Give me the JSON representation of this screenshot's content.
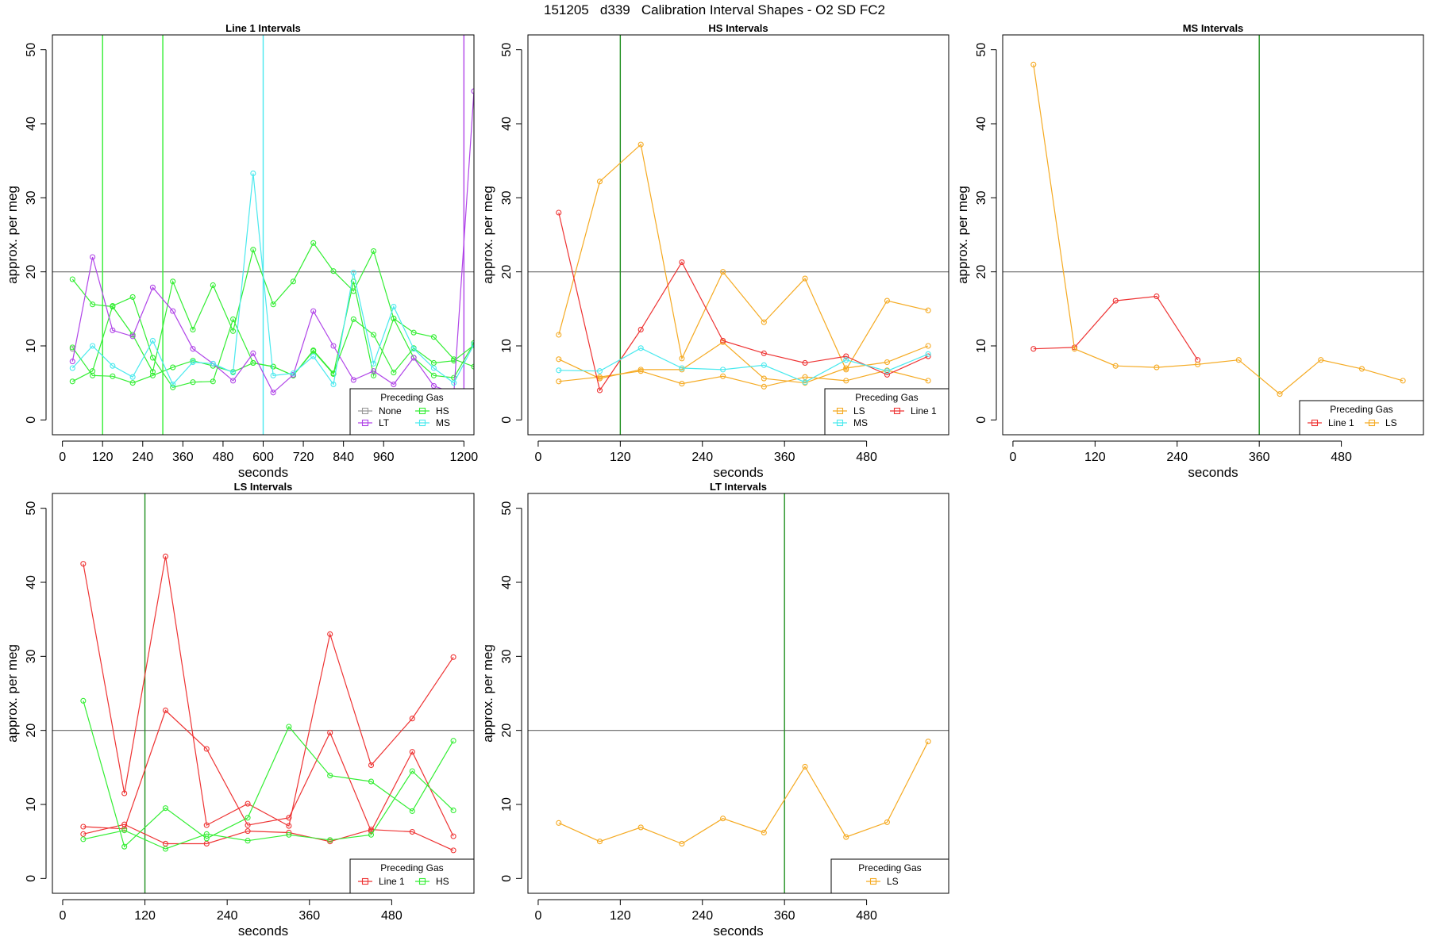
{
  "page_title": "151205   d339   Calibration Interval Shapes - O2 SD FC2",
  "colors": {
    "None": "#999999",
    "HS": "#33ee33",
    "LT": "#b044e8",
    "MS": "#4ae9ee",
    "LS": "#f5aa22",
    "Line 1": "#ee3333",
    "reference_line": "#666666",
    "vertical_marker": "#1f8f1f"
  },
  "chart_data": [
    {
      "type": "line",
      "title": "Line 1 Intervals",
      "xlabel": "seconds",
      "ylabel": "approx. per meg",
      "xlim": [
        -30,
        1230
      ],
      "ylim": [
        -2,
        52
      ],
      "x_ticks": [
        0,
        120,
        240,
        360,
        480,
        600,
        720,
        840,
        960,
        1200
      ],
      "y_ticks": [
        0,
        10,
        20,
        30,
        40,
        50
      ],
      "hline": 20,
      "vlines": [
        {
          "x": 120,
          "color": "HS"
        },
        {
          "x": 300,
          "color": "HS"
        },
        {
          "x": 600,
          "color": "MS"
        },
        {
          "x": 1200,
          "color": "LT"
        }
      ],
      "legend": {
        "title": "Preceding Gas",
        "position": "bottom-right",
        "columns": 2,
        "entries": [
          "None",
          "HS",
          "LT",
          "MS"
        ]
      },
      "series": [
        {
          "name": "None",
          "x": [
            30
          ],
          "y": [
            9.6
          ]
        },
        {
          "name": "HS",
          "x": [
            30,
            90,
            150,
            210,
            270,
            330,
            390,
            450,
            510,
            570,
            630,
            690,
            750,
            810,
            870,
            930,
            990,
            1050,
            1110,
            1170,
            1230
          ],
          "y": [
            19.0,
            15.6,
            15.3,
            11.5,
            6.5,
            18.7,
            12.2,
            18.2,
            12.0,
            23.0,
            15.6,
            18.7,
            23.9,
            20.1,
            17.4,
            22.8,
            13.7,
            11.8,
            11.2,
            8.2,
            7.2
          ]
        },
        {
          "name": "HS",
          "x": [
            30,
            90,
            150,
            210,
            270,
            330,
            390,
            450,
            510,
            570,
            630,
            690,
            750,
            810,
            870,
            930,
            990,
            1050,
            1110,
            1170,
            1230
          ],
          "y": [
            5.2,
            6.6,
            15.4,
            16.6,
            8.4,
            4.4,
            5.1,
            5.2,
            13.6,
            7.7,
            7.2,
            6.0,
            9.4,
            6.3,
            13.6,
            11.5,
            6.4,
            9.7,
            7.7,
            8.0,
            10.1
          ]
        },
        {
          "name": "HS",
          "x": [
            30,
            90,
            150,
            210,
            270,
            330,
            390,
            450,
            510,
            570,
            630,
            690,
            750,
            810,
            870,
            930,
            990,
            1050,
            1110,
            1170,
            1230
          ],
          "y": [
            9.8,
            6.0,
            5.9,
            5.0,
            6.0,
            7.1,
            8.0,
            7.3,
            6.5,
            7.7,
            7.2,
            6.0,
            9.3,
            6.2,
            18.7,
            6.0,
            13.7,
            8.4,
            6.0,
            5.7,
            10.4
          ]
        },
        {
          "name": "LT",
          "x": [
            30,
            90,
            150,
            210,
            270,
            330,
            390,
            450,
            510,
            570,
            630,
            690,
            750,
            810,
            870,
            930,
            990,
            1050,
            1110,
            1170,
            1230
          ],
          "y": [
            7.9,
            22.0,
            12.1,
            11.3,
            17.9,
            14.7,
            9.6,
            7.6,
            5.3,
            9.0,
            3.7,
            6.1,
            14.7,
            10.0,
            5.4,
            6.6,
            4.8,
            8.4,
            4.6,
            3.6,
            44.4
          ]
        },
        {
          "name": "MS",
          "x": [
            30,
            90,
            150,
            210,
            270,
            330,
            390,
            450,
            510,
            570,
            630,
            690,
            750,
            810,
            870,
            930,
            990,
            1050,
            1110,
            1170,
            1230
          ],
          "y": [
            7.0,
            10.0,
            7.3,
            5.8,
            10.7,
            4.8,
            7.8,
            7.6,
            6.4,
            33.3,
            6.0,
            6.3,
            8.6,
            4.8,
            19.9,
            7.6,
            15.3,
            9.6,
            7.0,
            5.0,
            10.2
          ]
        }
      ]
    },
    {
      "type": "line",
      "title": "HS Intervals",
      "xlabel": "seconds",
      "ylabel": "approx. per meg",
      "xlim": [
        -15,
        600
      ],
      "ylim": [
        -2,
        52
      ],
      "x_ticks": [
        0,
        120,
        240,
        360,
        480
      ],
      "y_ticks": [
        0,
        10,
        20,
        30,
        40,
        50
      ],
      "hline": 20,
      "vlines": [
        {
          "x": 120,
          "color": "vertical_marker"
        }
      ],
      "legend": {
        "title": "Preceding Gas",
        "position": "bottom-right",
        "columns": 2,
        "entries": [
          "LS",
          "Line 1",
          "MS"
        ]
      },
      "series": [
        {
          "name": "LS",
          "x": [
            30,
            90,
            150,
            210,
            270,
            330,
            390,
            450,
            510,
            570
          ],
          "y": [
            11.5,
            32.2,
            37.2,
            8.3,
            20.0,
            13.2,
            19.1,
            6.8,
            16.1,
            14.8
          ]
        },
        {
          "name": "LS",
          "x": [
            30,
            90,
            150,
            210,
            270,
            330,
            390,
            450,
            510,
            570
          ],
          "y": [
            8.2,
            5.6,
            6.8,
            6.8,
            10.5,
            5.6,
            5.0,
            7.0,
            7.8,
            10.0
          ]
        },
        {
          "name": "LS",
          "x": [
            30,
            90,
            150,
            210,
            270,
            330,
            390,
            450,
            510,
            570
          ],
          "y": [
            5.2,
            5.8,
            6.6,
            4.9,
            5.9,
            4.5,
            5.8,
            5.3,
            6.7,
            5.3
          ]
        },
        {
          "name": "Line 1",
          "x": [
            30,
            90,
            150,
            210,
            270,
            330,
            390,
            450,
            510,
            570
          ],
          "y": [
            28.0,
            4.0,
            12.2,
            21.3,
            10.7,
            9.0,
            7.7,
            8.6,
            6.1,
            8.6
          ]
        },
        {
          "name": "MS",
          "x": [
            30,
            90,
            150,
            210,
            270,
            330,
            390,
            450,
            510,
            570
          ],
          "y": [
            6.7,
            6.6,
            9.7,
            7.0,
            6.8,
            7.4,
            5.1,
            8.1,
            6.6,
            8.9
          ]
        }
      ]
    },
    {
      "type": "line",
      "title": "MS Intervals",
      "xlabel": "seconds",
      "ylabel": "approx. per meg",
      "xlim": [
        -15,
        600
      ],
      "ylim": [
        -2,
        52
      ],
      "x_ticks": [
        0,
        120,
        240,
        360,
        480
      ],
      "y_ticks": [
        0,
        10,
        20,
        30,
        40,
        50
      ],
      "hline": 20,
      "vlines": [
        {
          "x": 360,
          "color": "vertical_marker"
        }
      ],
      "legend": {
        "title": "Preceding Gas",
        "position": "bottom-right",
        "columns": 2,
        "entries": [
          "Line 1",
          "LS"
        ]
      },
      "series": [
        {
          "name": "Line 1",
          "x": [
            30,
            90,
            150,
            210,
            270
          ],
          "y": [
            9.6,
            9.8,
            16.1,
            16.7,
            8.1
          ]
        },
        {
          "name": "LS",
          "x": [
            30,
            90,
            150,
            210,
            270,
            330,
            390,
            450,
            510,
            570
          ],
          "y": [
            48.0,
            9.6,
            7.3,
            7.1,
            7.5,
            8.1,
            3.5,
            8.1,
            6.9,
            5.3
          ]
        }
      ]
    },
    {
      "type": "line",
      "title": "LS Intervals",
      "xlabel": "seconds",
      "ylabel": "approx. per meg",
      "xlim": [
        -15,
        600
      ],
      "ylim": [
        -2,
        52
      ],
      "x_ticks": [
        0,
        120,
        240,
        360,
        480
      ],
      "y_ticks": [
        0,
        10,
        20,
        30,
        40,
        50
      ],
      "hline": 20,
      "vlines": [
        {
          "x": 120,
          "color": "vertical_marker"
        }
      ],
      "legend": {
        "title": "Preceding Gas",
        "position": "bottom-right",
        "columns": 2,
        "entries": [
          "Line 1",
          "HS"
        ]
      },
      "series": [
        {
          "name": "Line 1",
          "x": [
            30,
            90,
            150,
            210,
            270,
            330,
            390,
            450,
            510,
            570
          ],
          "y": [
            42.5,
            11.5,
            43.5,
            7.2,
            10.1,
            7.1,
            33.0,
            15.3,
            21.6,
            29.9
          ]
        },
        {
          "name": "Line 1",
          "x": [
            30,
            90,
            150,
            210,
            270,
            330,
            390,
            450,
            510,
            570
          ],
          "y": [
            7.0,
            6.7,
            22.7,
            17.5,
            7.2,
            8.2,
            19.7,
            6.4,
            17.1,
            5.7
          ]
        },
        {
          "name": "Line 1",
          "x": [
            30,
            90,
            150,
            210,
            270,
            330,
            390,
            450,
            510,
            570
          ],
          "y": [
            6.0,
            7.3,
            4.7,
            4.7,
            6.4,
            6.2,
            5.0,
            6.6,
            6.3,
            3.8
          ]
        },
        {
          "name": "HS",
          "x": [
            30,
            90,
            150,
            210,
            270,
            330,
            390,
            450,
            510,
            570
          ],
          "y": [
            24.0,
            4.3,
            9.5,
            5.4,
            8.2,
            20.5,
            13.9,
            13.1,
            9.1,
            18.6
          ]
        },
        {
          "name": "HS",
          "x": [
            30,
            90,
            150,
            210,
            270,
            330,
            390,
            450,
            510,
            570
          ],
          "y": [
            5.3,
            6.5,
            4.0,
            6.0,
            5.1,
            5.9,
            5.2,
            5.9,
            14.5,
            9.2
          ]
        }
      ]
    },
    {
      "type": "line",
      "title": "LT Intervals",
      "xlabel": "seconds",
      "ylabel": "approx. per meg",
      "xlim": [
        -15,
        600
      ],
      "ylim": [
        -2,
        52
      ],
      "x_ticks": [
        0,
        120,
        240,
        360,
        480
      ],
      "y_ticks": [
        0,
        10,
        20,
        30,
        40,
        50
      ],
      "hline": 20,
      "vlines": [
        {
          "x": 360,
          "color": "vertical_marker"
        }
      ],
      "legend": {
        "title": "Preceding Gas",
        "position": "bottom-right",
        "columns": 1,
        "entries": [
          "LS"
        ]
      },
      "series": [
        {
          "name": "LS",
          "x": [
            30,
            90,
            150,
            210,
            270,
            330,
            390,
            450,
            510,
            570
          ],
          "y": [
            7.5,
            5.0,
            6.9,
            4.7,
            8.1,
            6.2,
            15.1,
            5.6,
            7.6,
            18.5
          ]
        }
      ]
    }
  ]
}
